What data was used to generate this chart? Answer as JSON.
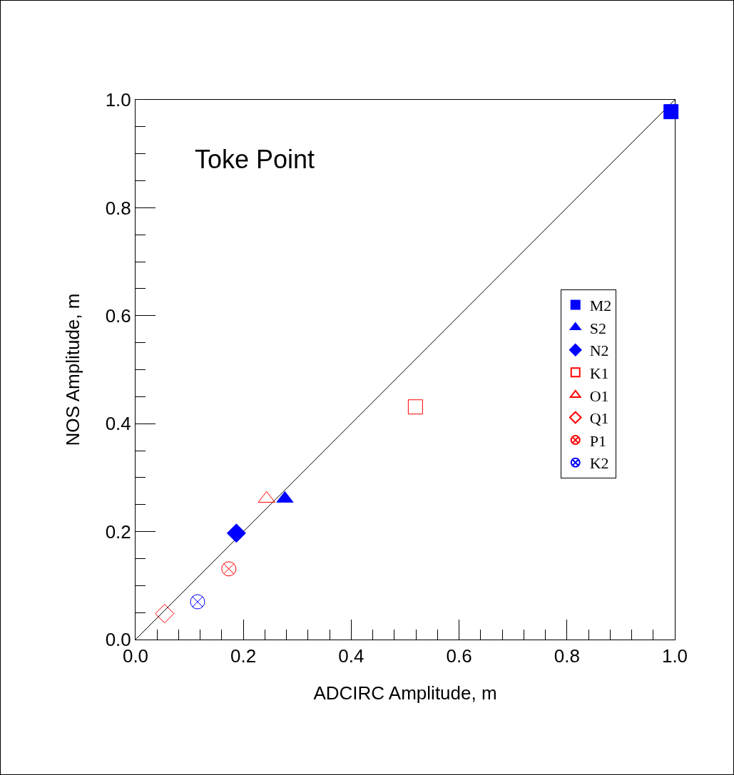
{
  "chart_data": {
    "type": "scatter",
    "title": "Toke Point",
    "xlabel": "ADCIRC Amplitude, m",
    "ylabel": "NOS Amplitude, m",
    "xlim": [
      0,
      1
    ],
    "ylim": [
      0,
      1
    ],
    "xticks": [
      {
        "value": 0,
        "label": "0.0"
      },
      {
        "value": 0.04,
        "label": null
      },
      {
        "value": 0.08,
        "label": null
      },
      {
        "value": 0.12,
        "label": null
      },
      {
        "value": 0.16,
        "label": null
      },
      {
        "value": 0.2,
        "label": "0.2"
      },
      {
        "value": 0.24,
        "label": null
      },
      {
        "value": 0.28,
        "label": null
      },
      {
        "value": 0.32,
        "label": null
      },
      {
        "value": 0.36,
        "label": null
      },
      {
        "value": 0.4,
        "label": "0.4"
      },
      {
        "value": 0.44,
        "label": null
      },
      {
        "value": 0.48,
        "label": null
      },
      {
        "value": 0.52,
        "label": null
      },
      {
        "value": 0.56,
        "label": null
      },
      {
        "value": 0.6,
        "label": "0.6"
      },
      {
        "value": 0.64,
        "label": null
      },
      {
        "value": 0.68,
        "label": null
      },
      {
        "value": 0.72,
        "label": null
      },
      {
        "value": 0.76,
        "label": null
      },
      {
        "value": 0.8,
        "label": "0.8"
      },
      {
        "value": 0.84,
        "label": null
      },
      {
        "value": 0.88,
        "label": null
      },
      {
        "value": 0.92,
        "label": null
      },
      {
        "value": 0.96,
        "label": null
      },
      {
        "value": 1.0,
        "label": "1.0"
      }
    ],
    "yticks": [
      {
        "value": 0,
        "label": "0.0"
      },
      {
        "value": 0.05,
        "label": null
      },
      {
        "value": 0.1,
        "label": null
      },
      {
        "value": 0.15,
        "label": null
      },
      {
        "value": 0.2,
        "label": "0.2"
      },
      {
        "value": 0.25,
        "label": null
      },
      {
        "value": 0.3,
        "label": null
      },
      {
        "value": 0.35,
        "label": null
      },
      {
        "value": 0.4,
        "label": "0.4"
      },
      {
        "value": 0.45,
        "label": null
      },
      {
        "value": 0.5,
        "label": null
      },
      {
        "value": 0.55,
        "label": null
      },
      {
        "value": 0.6,
        "label": "0.6"
      },
      {
        "value": 0.65,
        "label": null
      },
      {
        "value": 0.7,
        "label": null
      },
      {
        "value": 0.75,
        "label": null
      },
      {
        "value": 0.8,
        "label": "0.8"
      },
      {
        "value": 0.85,
        "label": null
      },
      {
        "value": 0.9,
        "label": null
      },
      {
        "value": 0.95,
        "label": null
      },
      {
        "value": 1.0,
        "label": "1.0"
      }
    ],
    "grid": false,
    "legend": "bottom right",
    "series": [
      {
        "type": "line",
        "color": "#000000",
        "x": [
          0,
          1
        ],
        "values": [
          0,
          1
        ],
        "marker": "none",
        "line_style": "solid"
      },
      {
        "name": "M2",
        "color": "#0000ff",
        "x": [
          0.993
        ],
        "values": [
          0.978
        ],
        "marker": "square"
      },
      {
        "name": "S2",
        "color": "#0000ff",
        "x": [
          0.277
        ],
        "values": [
          0.261
        ],
        "marker": "triangle"
      },
      {
        "name": "N2",
        "color": "#0000ff",
        "x": [
          0.187
        ],
        "values": [
          0.197
        ],
        "marker": "diamond"
      },
      {
        "name": "K1",
        "color": "#ff0000",
        "x": [
          0.519
        ],
        "values": [
          0.431
        ],
        "marker": "square-open"
      },
      {
        "name": "O1",
        "color": "#ff0000",
        "x": [
          0.243
        ],
        "values": [
          0.261
        ],
        "marker": "triangle-open"
      },
      {
        "name": "Q1",
        "color": "#ff0000",
        "x": [
          0.054
        ],
        "values": [
          0.048
        ],
        "marker": "diamond-open"
      },
      {
        "name": "P1",
        "color": "#ff0000",
        "x": [
          0.173
        ],
        "values": [
          0.131
        ],
        "marker": "cross"
      },
      {
        "name": "K2",
        "color": "#0000ff",
        "x": [
          0.115
        ],
        "values": [
          0.07
        ],
        "marker": "cross"
      }
    ]
  }
}
